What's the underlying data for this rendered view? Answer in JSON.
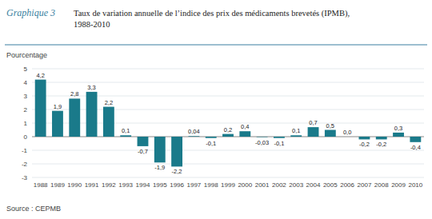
{
  "chart_data": {
    "type": "bar",
    "title": "Taux de variation annuelle de l’indice des prix des médicaments brevetés (IPMB),\n1988-2010",
    "y_label": "Pourcentage",
    "annotations": [
      {
        "text": "Graphique 3"
      },
      {
        "text": "Source : CEPMB"
      }
    ],
    "categories": [
      "1988",
      "1989",
      "1990",
      "1991",
      "1992",
      "1993",
      "1994",
      "1995",
      "1996",
      "1997",
      "1998",
      "1999",
      "2000",
      "2001",
      "2002",
      "2003",
      "2004",
      "2005",
      "2006",
      "2007",
      "2008",
      "2009",
      "2010"
    ],
    "values": [
      4.2,
      1.9,
      2.8,
      3.3,
      2.2,
      0.1,
      -0.7,
      -1.9,
      -2.2,
      0.04,
      -0.1,
      0.2,
      0.4,
      -0.03,
      -0.1,
      0.1,
      0.7,
      0.5,
      0.0,
      -0.2,
      -0.2,
      0.3,
      -0.4
    ],
    "value_labels": [
      "4,2",
      "1,9",
      "2,8",
      "3,3",
      "2,2",
      "0,1",
      "-0,7",
      "-1,9",
      "-2,2",
      "0,04",
      "-0,1",
      "0,2",
      "0,4",
      "-0,03",
      "-0,1",
      "0,1",
      "0,7",
      "0,5",
      "0,0",
      "-0,2",
      "-0,2",
      "0,3",
      "-0,4"
    ],
    "color": "#1a7a8a",
    "ylim": [
      -3,
      5
    ],
    "yticks": [
      -3,
      -2,
      -1,
      0,
      1,
      2,
      3,
      4,
      5
    ],
    "grid": true,
    "data_labels": true
  }
}
